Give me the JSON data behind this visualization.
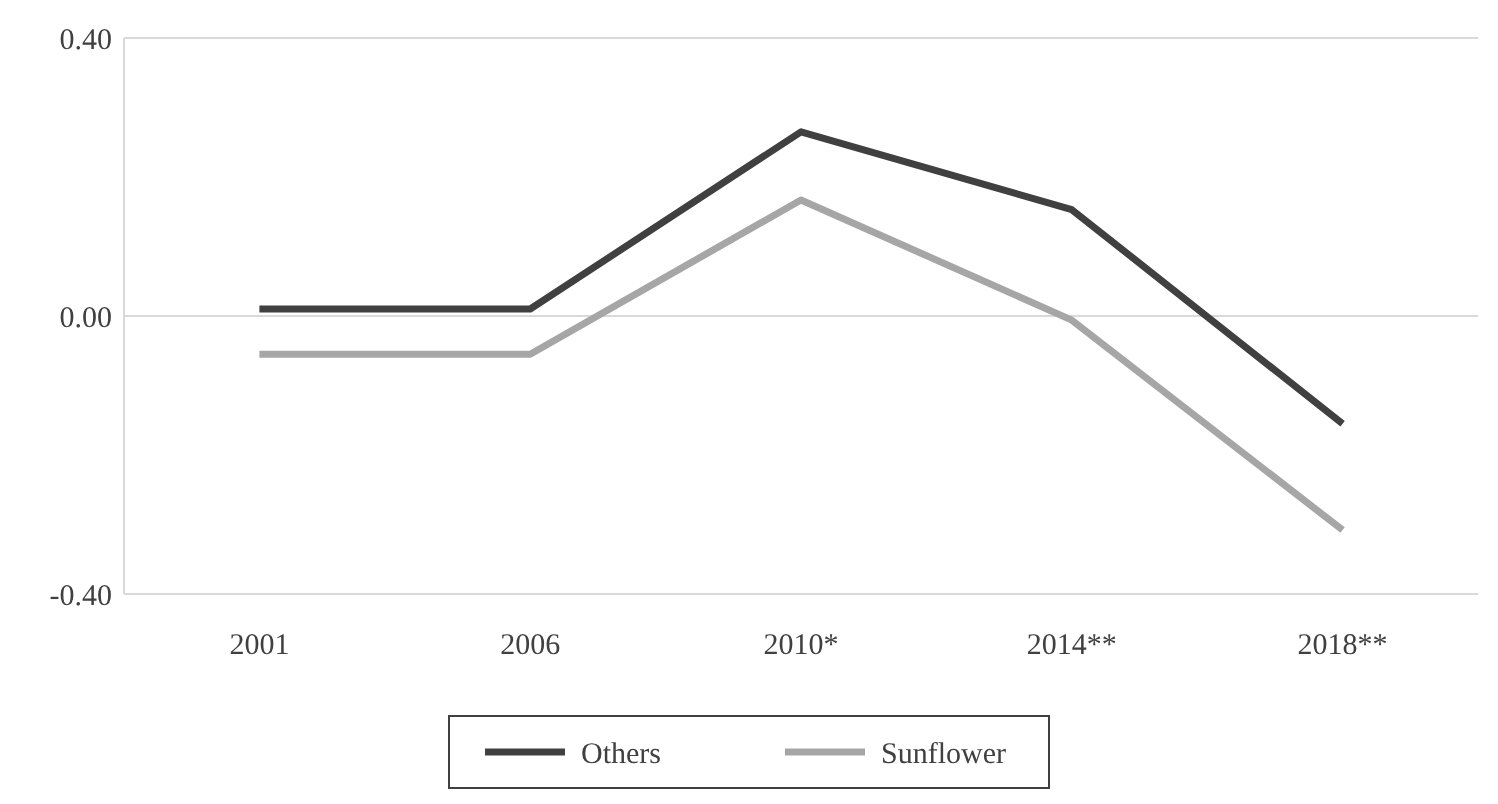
{
  "chart_data": {
    "type": "line",
    "categories": [
      "2001",
      "2006",
      "2010*",
      "2014**",
      "2018**"
    ],
    "series": [
      {
        "name": "Others",
        "color": "#404040",
        "values": [
          0.01,
          0.01,
          0.265,
          0.153,
          -0.155
        ]
      },
      {
        "name": "Sunflower",
        "color": "#a6a6a6",
        "values": [
          -0.055,
          -0.055,
          0.167,
          -0.006,
          -0.308
        ]
      }
    ],
    "ylim": [
      -0.4,
      0.4
    ],
    "yticks": [
      {
        "value": -0.4,
        "label": "-0.40"
      },
      {
        "value": 0,
        "label": "0.00"
      },
      {
        "value": 0.4,
        "label": "0.40"
      }
    ],
    "grid": "y",
    "legend": "bottom",
    "marker": "none",
    "line_style": "solid"
  }
}
